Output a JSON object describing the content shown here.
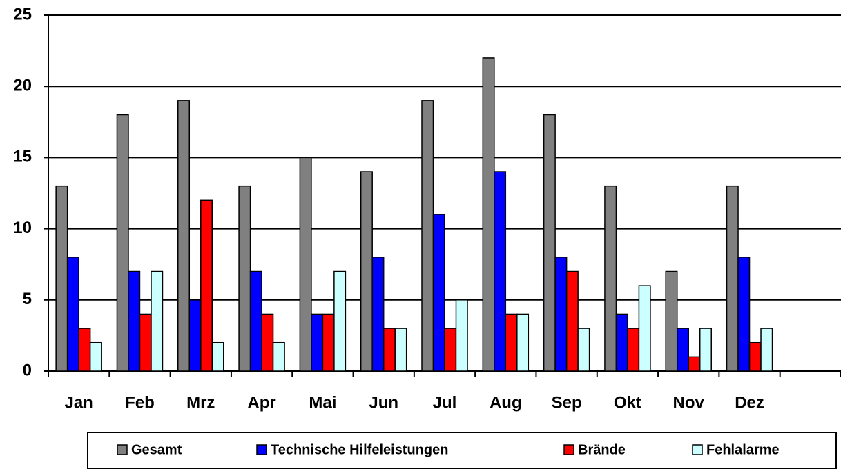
{
  "chart_data": {
    "type": "bar",
    "categories": [
      "Jan",
      "Feb",
      "Mrz",
      "Apr",
      "Mai",
      "Jun",
      "Jul",
      "Aug",
      "Sep",
      "Okt",
      "Nov",
      "Dez",
      null
    ],
    "series": [
      {
        "name": "Gesamt",
        "color": "#808080",
        "values": [
          13,
          18,
          19,
          13,
          15,
          14,
          19,
          22,
          18,
          13,
          7,
          13,
          null
        ]
      },
      {
        "name": "Technische Hilfeleistungen",
        "color": "#0000ff",
        "values": [
          8,
          7,
          5,
          7,
          4,
          8,
          11,
          14,
          8,
          4,
          3,
          8,
          null
        ]
      },
      {
        "name": "Brände",
        "color": "#ff0000",
        "values": [
          3,
          4,
          12,
          4,
          4,
          3,
          3,
          4,
          7,
          3,
          1,
          2,
          null
        ]
      },
      {
        "name": "Fehlalarme",
        "color": "#ccffff",
        "values": [
          2,
          7,
          2,
          2,
          7,
          3,
          5,
          4,
          3,
          6,
          3,
          3,
          null
        ]
      }
    ],
    "ylim": [
      0,
      25
    ],
    "yticks": [
      0,
      5,
      10,
      15,
      20,
      25
    ],
    "grid": true,
    "legend": "bottom"
  }
}
